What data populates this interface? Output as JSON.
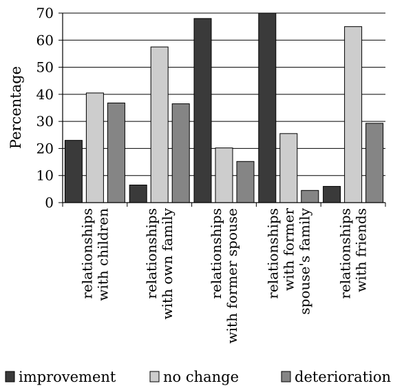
{
  "chart_data": {
    "type": "bar",
    "title": "",
    "xlabel": "",
    "ylabel": "Percentage",
    "ylim": [
      0,
      70
    ],
    "yticks": [
      0,
      10,
      20,
      30,
      40,
      50,
      60,
      70
    ],
    "grid": true,
    "legend_position": "bottom",
    "categories": [
      [
        "relationships",
        "with children"
      ],
      [
        "relationships",
        "with own family"
      ],
      [
        "relationships",
        "with former spouse"
      ],
      [
        "relationships",
        "with former",
        "spouse's family"
      ],
      [
        "relationships",
        "with friends"
      ]
    ],
    "series": [
      {
        "name": "improvement",
        "color": "#3a3a3a",
        "values": [
          23,
          6.5,
          68,
          70,
          6
        ]
      },
      {
        "name": "no change",
        "color": "#cdcdcd",
        "values": [
          40.5,
          57.5,
          20.2,
          25.5,
          65
        ]
      },
      {
        "name": "deterioration",
        "color": "#858585",
        "values": [
          36.8,
          36.5,
          15.2,
          4.5,
          29.3
        ]
      }
    ]
  }
}
